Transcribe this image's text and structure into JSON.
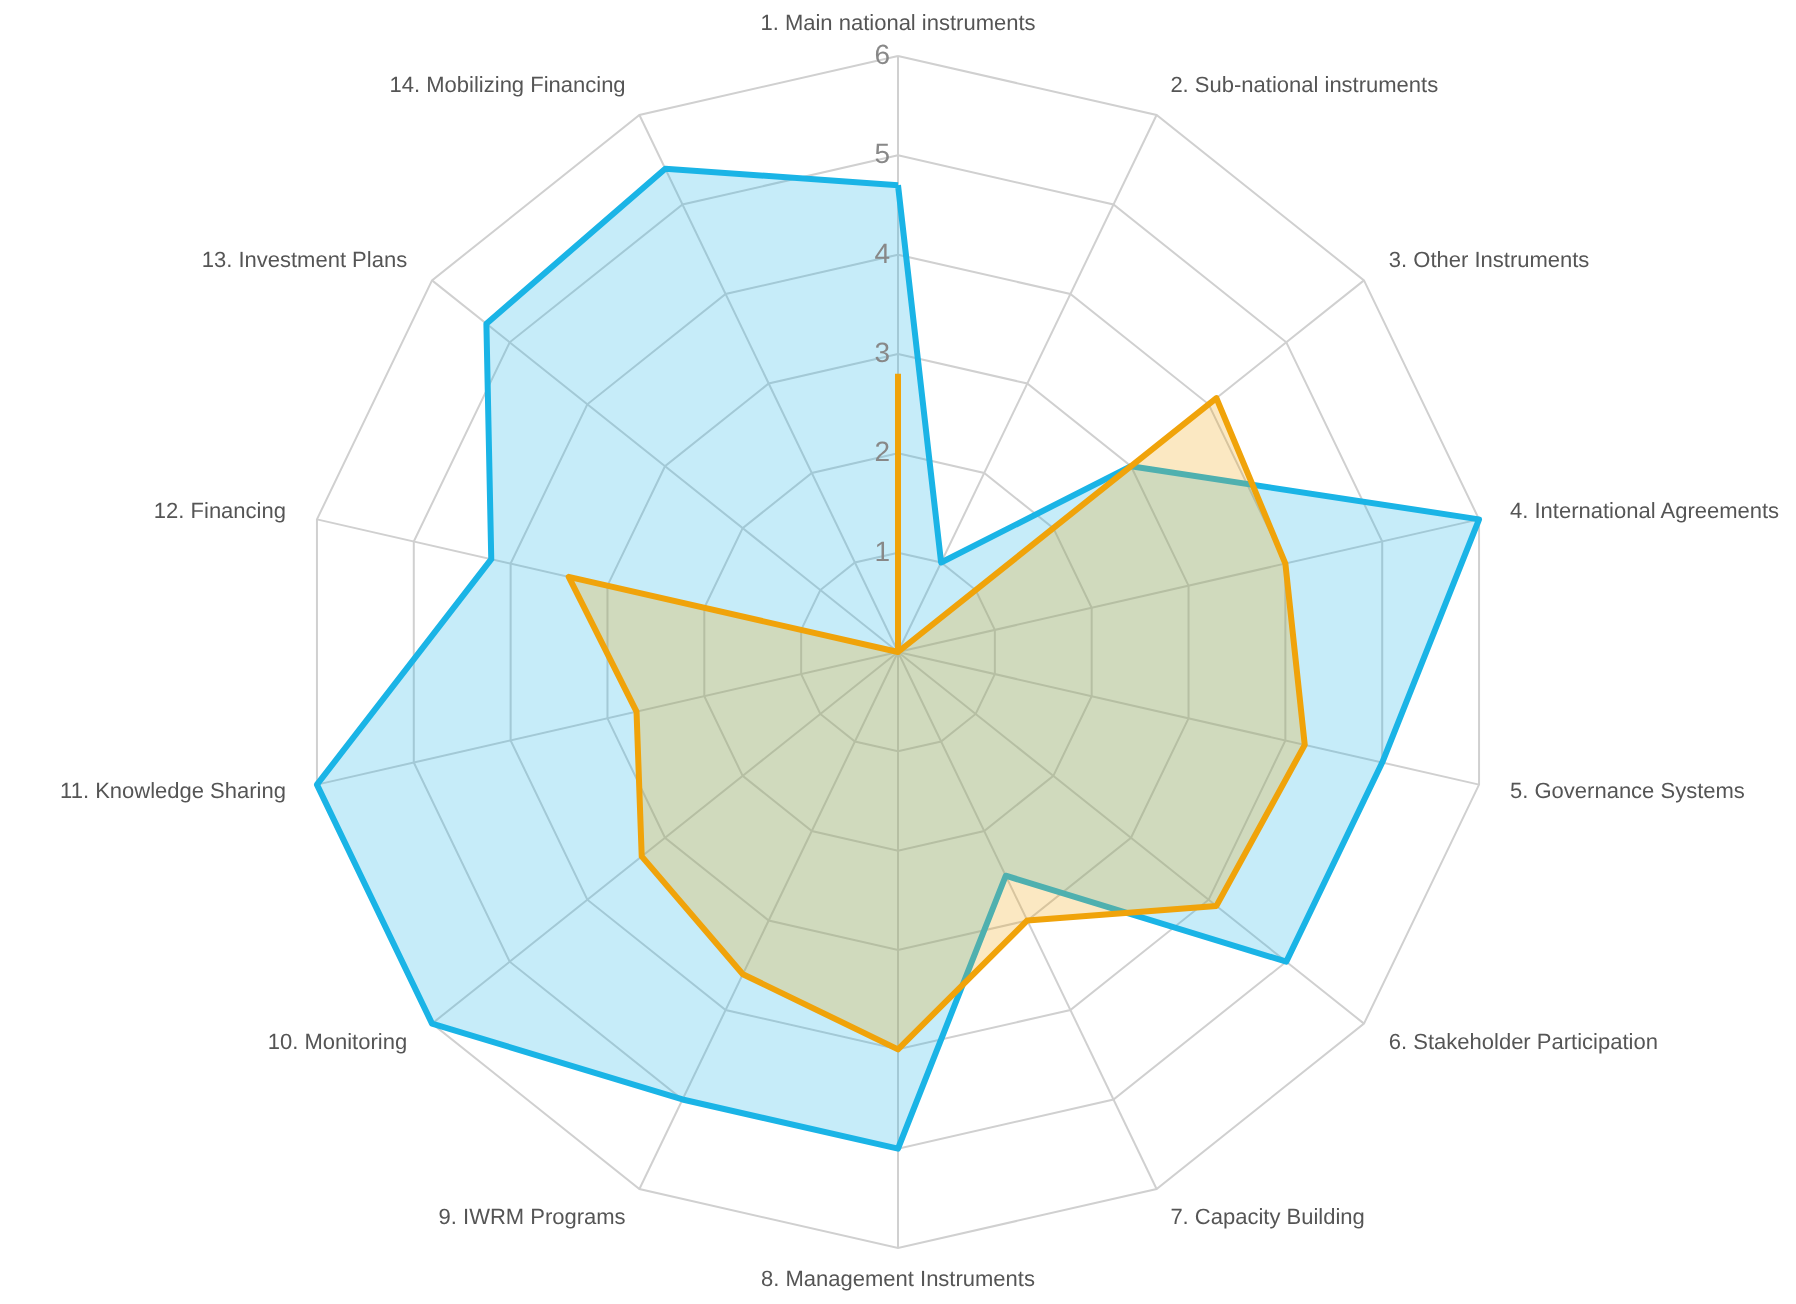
{
  "chart_data": {
    "type": "radar",
    "categories": [
      "1. Main national instruments",
      "2. Sub-national instruments",
      "3. Other Instruments",
      "4. International Agreements",
      "5. Governance Systems",
      "6. Stakeholder Participation",
      "7. Capacity Building",
      "8. Management Instruments",
      "9. IWRM Programs",
      "10. Monitoring",
      "11. Knowledge Sharing",
      "12. Financing",
      "13. Investment Plans",
      "14. Mobilizing Financing"
    ],
    "series": [
      {
        "color": "#1ab4e6",
        "values": [
          4.7,
          1.0,
          3.0,
          6.0,
          5.0,
          5.0,
          2.5,
          5.0,
          5.0,
          6.0,
          6.0,
          4.2,
          5.3,
          5.4
        ]
      },
      {
        "color": "#f0a30a",
        "values": [
          2.8,
          0,
          4.1,
          4.0,
          4.2,
          4.1,
          3.0,
          4.0,
          3.6,
          3.3,
          2.7,
          3.4,
          0,
          0
        ]
      }
    ],
    "ylim": [
      0,
      6
    ],
    "yticks": [
      1,
      2,
      3,
      4,
      5,
      6
    ],
    "grid": true
  }
}
